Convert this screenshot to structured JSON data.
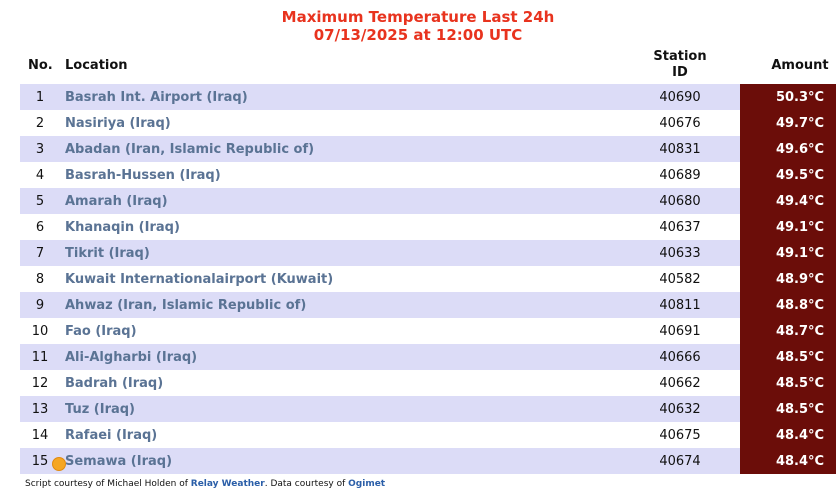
{
  "title": {
    "line1": "Maximum Temperature Last 24h",
    "line2": "07/13/2025 at 12:00 UTC"
  },
  "table": {
    "headers": {
      "no": "No.",
      "location": "Location",
      "station_id_line1": "Station",
      "station_id_line2": "ID",
      "amount": "Amount"
    },
    "rows": [
      {
        "no": "1",
        "location": "Basrah Int. Airport (Iraq)",
        "station_id": "40690",
        "amount": "50.3°C"
      },
      {
        "no": "2",
        "location": "Nasiriya (Iraq)",
        "station_id": "40676",
        "amount": "49.7°C"
      },
      {
        "no": "3",
        "location": "Abadan (Iran, Islamic Republic of)",
        "station_id": "40831",
        "amount": "49.6°C"
      },
      {
        "no": "4",
        "location": "Basrah-Hussen (Iraq)",
        "station_id": "40689",
        "amount": "49.5°C"
      },
      {
        "no": "5",
        "location": "Amarah (Iraq)",
        "station_id": "40680",
        "amount": "49.4°C"
      },
      {
        "no": "6",
        "location": "Khanaqin (Iraq)",
        "station_id": "40637",
        "amount": "49.1°C"
      },
      {
        "no": "7",
        "location": "Tikrit (Iraq)",
        "station_id": "40633",
        "amount": "49.1°C"
      },
      {
        "no": "8",
        "location": "Kuwait Internationalairport (Kuwait)",
        "station_id": "40582",
        "amount": "48.9°C"
      },
      {
        "no": "9",
        "location": "Ahwaz (Iran, Islamic Republic of)",
        "station_id": "40811",
        "amount": "48.8°C"
      },
      {
        "no": "10",
        "location": "Fao (Iraq)",
        "station_id": "40691",
        "amount": "48.7°C"
      },
      {
        "no": "11",
        "location": "Ali-Algharbi (Iraq)",
        "station_id": "40666",
        "amount": "48.5°C"
      },
      {
        "no": "12",
        "location": "Badrah (Iraq)",
        "station_id": "40662",
        "amount": "48.5°C"
      },
      {
        "no": "13",
        "location": "Tuz (Iraq)",
        "station_id": "40632",
        "amount": "48.5°C"
      },
      {
        "no": "14",
        "location": "Rafaei (Iraq)",
        "station_id": "40675",
        "amount": "48.4°C"
      },
      {
        "no": "15",
        "location": "Semawa (Iraq)",
        "station_id": "40674",
        "amount": "48.4°C"
      }
    ]
  },
  "footer": {
    "prefix": "Script courtesy of  Michael Holden of ",
    "link1": "Relay Weather",
    "middle": ". Data courtesy of ",
    "link2": "Ogimet"
  },
  "colors": {
    "title": "#e8331e",
    "row_odd": "#dcdcf7",
    "amount_bg": "#6b0d09",
    "location_text": "#5a7394",
    "link": "#2a5ea8"
  }
}
